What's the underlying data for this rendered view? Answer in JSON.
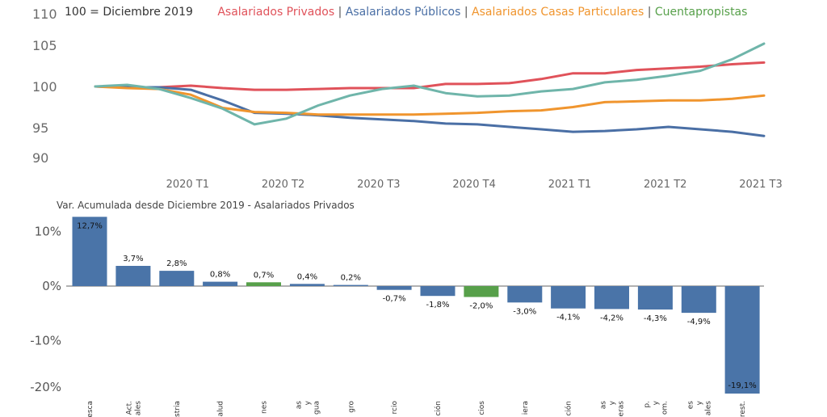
{
  "chart_data": [
    {
      "type": "line",
      "title": "100 = Diciembre 2019",
      "ylim": [
        90,
        110
      ],
      "y_ticks": [
        "110",
        "105",
        "100",
        "95",
        "90"
      ],
      "x_ticks": [
        "2020 T1",
        "2020 T2",
        "2020 T3",
        "2020 T4",
        "2021 T1",
        "2021 T2",
        "2021 T3"
      ],
      "x_months": [
        "2019-12",
        "2020-01",
        "2020-02",
        "2020-03",
        "2020-04",
        "2020-05",
        "2020-06",
        "2020-07",
        "2020-08",
        "2020-09",
        "2020-10",
        "2020-11",
        "2020-12",
        "2021-01",
        "2021-02",
        "2021-03",
        "2021-04",
        "2021-05",
        "2021-06",
        "2021-07",
        "2021-08",
        "2021-09"
      ],
      "series": [
        {
          "name": "Asalariados Privados",
          "color": "#e0525a",
          "values": [
            100.0,
            99.9,
            99.9,
            100.1,
            99.8,
            99.6,
            99.6,
            99.7,
            99.8,
            99.8,
            99.8,
            100.3,
            100.3,
            100.4,
            100.9,
            101.6,
            101.6,
            102.0,
            102.2,
            102.4,
            102.7,
            102.9
          ]
        },
        {
          "name": "Asalariados Públicos",
          "color": "#4a6fa5",
          "values": [
            100.0,
            99.9,
            99.9,
            99.6,
            98.3,
            96.8,
            96.7,
            96.5,
            96.2,
            96.0,
            95.8,
            95.5,
            95.4,
            95.1,
            94.8,
            94.5,
            94.6,
            94.8,
            95.1,
            94.8,
            94.5,
            94.0
          ]
        },
        {
          "name": "Asalariados Casas Particulares",
          "color": "#f0952e",
          "values": [
            100.0,
            99.8,
            99.7,
            99.0,
            97.4,
            96.9,
            96.8,
            96.6,
            96.6,
            96.6,
            96.6,
            96.7,
            96.8,
            97.0,
            97.1,
            97.5,
            98.1,
            98.2,
            98.3,
            98.3,
            98.5,
            98.9
          ]
        },
        {
          "name": "Cuentapropistas",
          "color": "#6fb5aa",
          "values": [
            100.0,
            100.2,
            99.7,
            98.6,
            97.3,
            95.4,
            96.1,
            97.7,
            98.9,
            99.7,
            100.1,
            99.2,
            98.8,
            98.9,
            99.4,
            99.7,
            100.5,
            100.8,
            101.3,
            101.9,
            103.3,
            105.2
          ]
        }
      ]
    },
    {
      "type": "bar",
      "title": "Var. Acumulada desde Diciembre 2019 - Asalariados Privados",
      "ylim": [
        -20,
        12.7
      ],
      "y_ticks": [
        {
          "value": 10,
          "label": "10%"
        },
        {
          "value": 0,
          "label": "0%"
        },
        {
          "value": -10,
          "label": "-10%"
        },
        {
          "value": -20,
          "label": "-20%"
        }
      ],
      "categories": [
        "esca",
        "Act. ales",
        "stria",
        "alud",
        "nes",
        "as y gua",
        "gro",
        "rcio",
        "ción",
        "cios",
        "iera",
        "ción",
        "as y eras",
        "p. y om.",
        "es y ales",
        "rest."
      ],
      "values": [
        12.7,
        3.7,
        2.8,
        0.8,
        0.7,
        0.4,
        0.2,
        -0.7,
        -1.8,
        -2.0,
        -3.0,
        -4.1,
        -4.2,
        -4.3,
        -4.9,
        -19.1
      ],
      "value_labels": [
        "12,7%",
        "3,7%",
        "2,8%",
        "0,8%",
        "0,7%",
        "0,4%",
        "0,2%",
        "-0,7%",
        "-1,8%",
        "-2,0%",
        "-3,0%",
        "-4,1%",
        "-4,2%",
        "-4,3%",
        "-4,9%",
        "-19,1%"
      ],
      "colors": [
        "#4a74a8",
        "#4a74a8",
        "#4a74a8",
        "#4a74a8",
        "#57a04a",
        "#4a74a8",
        "#4a74a8",
        "#4a74a8",
        "#4a74a8",
        "#57a04a",
        "#4a74a8",
        "#4a74a8",
        "#4a74a8",
        "#4a74a8",
        "#4a74a8",
        "#4a74a8"
      ]
    }
  ]
}
